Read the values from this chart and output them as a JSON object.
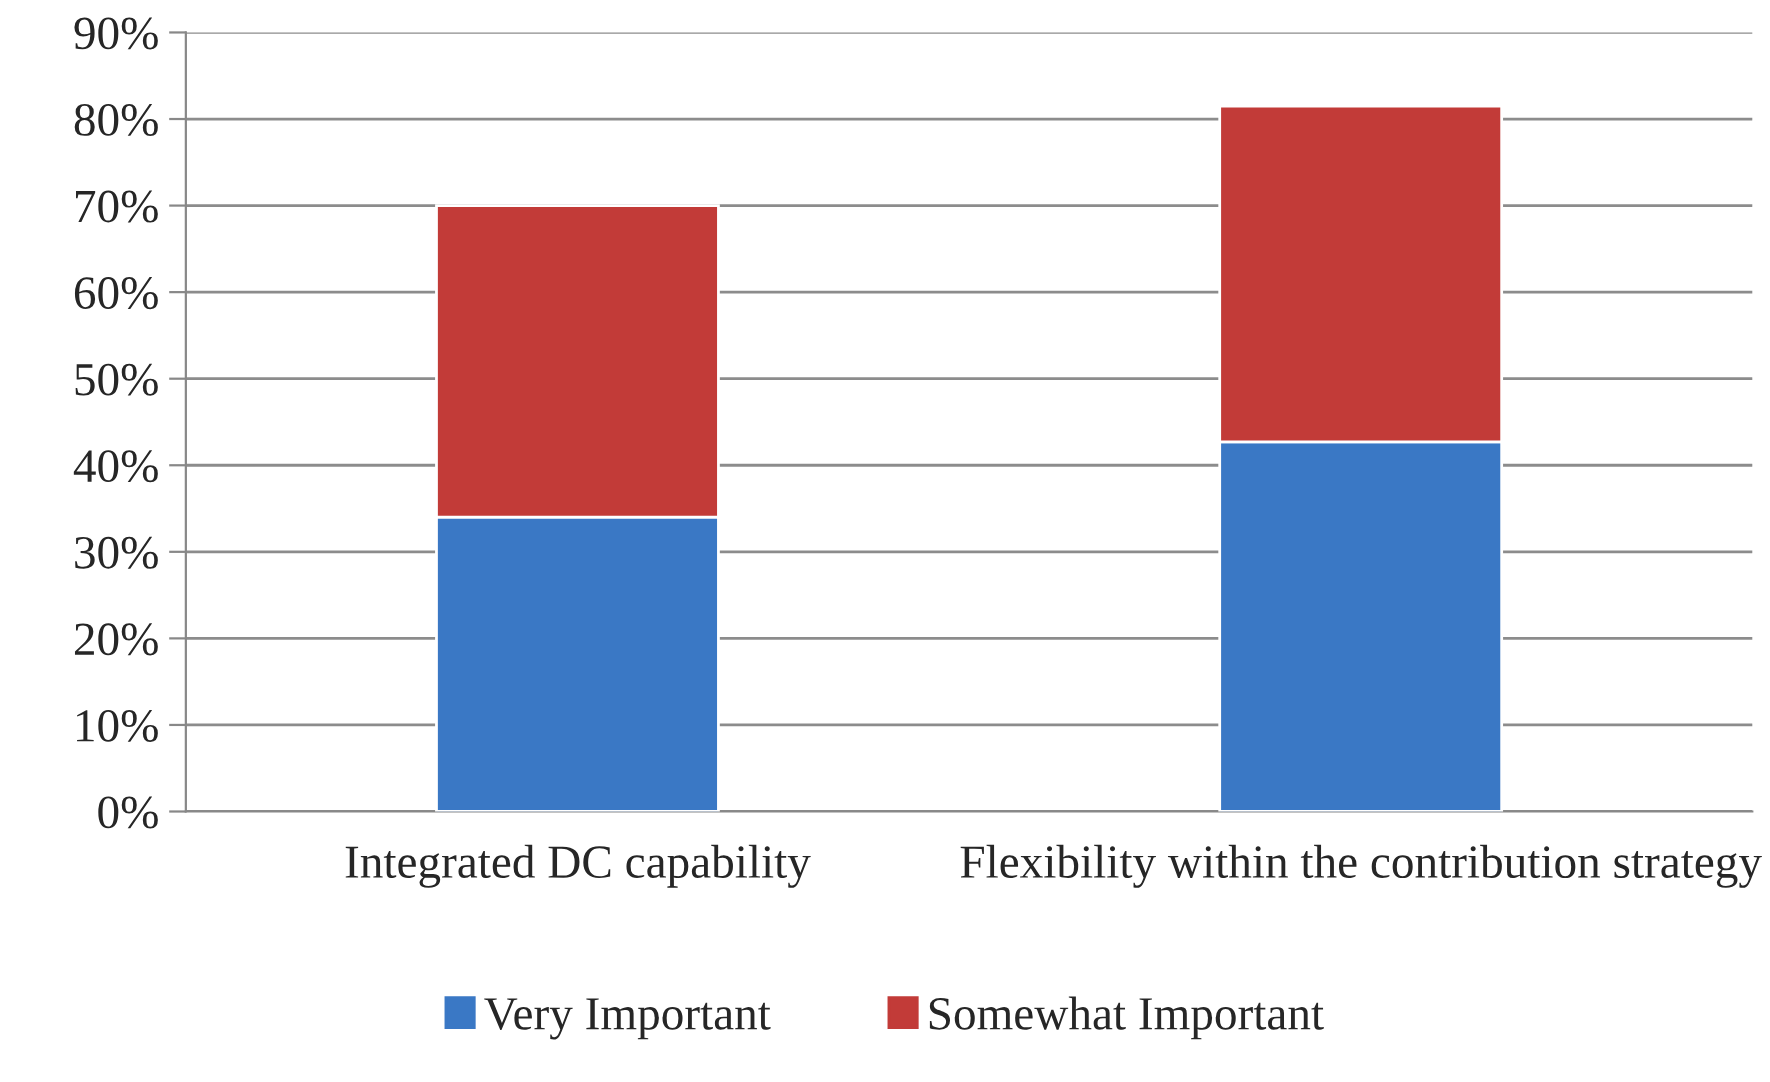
{
  "chart_data": {
    "type": "bar",
    "stacked": true,
    "categories": [
      "Integrated DC capability",
      "Flexibility within the contribution strategy"
    ],
    "series": [
      {
        "name": "Very Important",
        "color": "#3a78c5",
        "values": [
          34,
          42.7
        ]
      },
      {
        "name": "Somewhat Important",
        "color": "#c23b38",
        "values": [
          36,
          38.8
        ]
      }
    ],
    "ylim": [
      0,
      90
    ],
    "yticks": [
      {
        "value": 0,
        "label": "0%"
      },
      {
        "value": 10,
        "label": "10%"
      },
      {
        "value": 20,
        "label": "20%"
      },
      {
        "value": 30,
        "label": "30%"
      },
      {
        "value": 40,
        "label": "40%"
      },
      {
        "value": 50,
        "label": "50%"
      },
      {
        "value": 60,
        "label": "60%"
      },
      {
        "value": 70,
        "label": "70%"
      },
      {
        "value": 80,
        "label": "80%"
      },
      {
        "value": 90,
        "label": "90%"
      }
    ],
    "grid": "y",
    "legend": "bottom"
  }
}
